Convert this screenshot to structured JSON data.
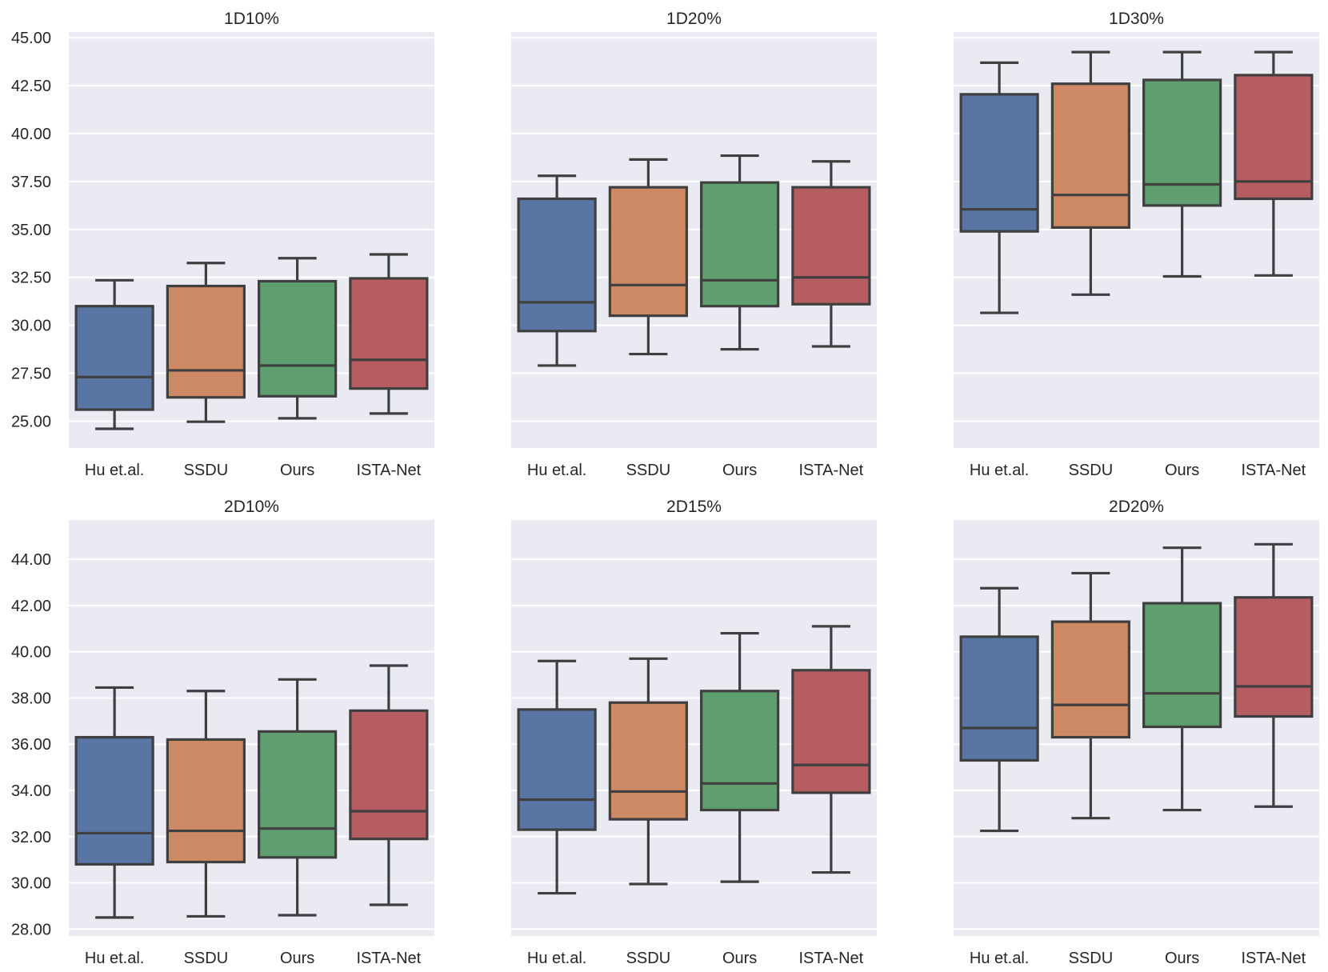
{
  "figure": {
    "background": "#ffffff",
    "axes_background": "#eaeaf2",
    "grid_color": "#ffffff",
    "line_color": "#3f3f3f"
  },
  "categories": [
    "Hu et.al.",
    "SSDU",
    "Ours",
    "ISTA-Net"
  ],
  "series_colors": [
    "#5975a4",
    "#cc8963",
    "#5f9e6e",
    "#b55d60"
  ],
  "chart_data": [
    {
      "type": "box",
      "title": "1D10%",
      "xlabel": "",
      "ylabel": "",
      "ylim": [
        23.6,
        45.3
      ],
      "yticks": [
        25,
        27.5,
        30,
        32.5,
        35,
        37.5,
        40,
        42.5,
        45
      ],
      "ytick_labels": [
        "25.00",
        "27.50",
        "30.00",
        "32.50",
        "35.00",
        "37.50",
        "40.00",
        "42.50",
        "45.00"
      ],
      "show_ytick_labels": true,
      "grid": true,
      "boxes": [
        {
          "category": "Hu et.al.",
          "min": 24.6,
          "q1": 25.6,
          "median": 27.3,
          "q3": 31.0,
          "max": 32.35
        },
        {
          "category": "SSDU",
          "min": 24.97,
          "q1": 26.24,
          "median": 27.65,
          "q3": 32.05,
          "max": 33.25
        },
        {
          "category": "Ours",
          "min": 25.15,
          "q1": 26.3,
          "median": 27.9,
          "q3": 32.3,
          "max": 33.5
        },
        {
          "category": "ISTA-Net",
          "min": 25.4,
          "q1": 26.7,
          "median": 28.2,
          "q3": 32.45,
          "max": 33.7
        }
      ]
    },
    {
      "type": "box",
      "title": "1D20%",
      "xlabel": "",
      "ylabel": "",
      "ylim": [
        23.6,
        45.3
      ],
      "yticks": [
        25,
        27.5,
        30,
        32.5,
        35,
        37.5,
        40,
        42.5,
        45
      ],
      "ytick_labels": [
        "25.00",
        "27.50",
        "30.00",
        "32.50",
        "35.00",
        "37.50",
        "40.00",
        "42.50",
        "45.00"
      ],
      "show_ytick_labels": false,
      "grid": true,
      "boxes": [
        {
          "category": "Hu et.al.",
          "min": 27.9,
          "q1": 29.7,
          "median": 31.2,
          "q3": 36.6,
          "max": 37.8
        },
        {
          "category": "SSDU",
          "min": 28.5,
          "q1": 30.5,
          "median": 32.1,
          "q3": 37.2,
          "max": 38.65
        },
        {
          "category": "Ours",
          "min": 28.75,
          "q1": 31.0,
          "median": 32.35,
          "q3": 37.45,
          "max": 38.85
        },
        {
          "category": "ISTA-Net",
          "min": 28.9,
          "q1": 31.1,
          "median": 32.5,
          "q3": 37.2,
          "max": 38.55
        }
      ]
    },
    {
      "type": "box",
      "title": "1D30%",
      "xlabel": "",
      "ylabel": "",
      "ylim": [
        23.6,
        45.3
      ],
      "yticks": [
        25,
        27.5,
        30,
        32.5,
        35,
        37.5,
        40,
        42.5,
        45
      ],
      "ytick_labels": [
        "25.00",
        "27.50",
        "30.00",
        "32.50",
        "35.00",
        "37.50",
        "40.00",
        "42.50",
        "45.00"
      ],
      "show_ytick_labels": false,
      "grid": true,
      "boxes": [
        {
          "category": "Hu et.al.",
          "min": 30.65,
          "q1": 34.9,
          "median": 36.05,
          "q3": 42.05,
          "max": 43.7
        },
        {
          "category": "SSDU",
          "min": 31.6,
          "q1": 35.1,
          "median": 36.8,
          "q3": 42.6,
          "max": 44.25
        },
        {
          "category": "Ours",
          "min": 32.55,
          "q1": 36.25,
          "median": 37.35,
          "q3": 42.8,
          "max": 44.25
        },
        {
          "category": "ISTA-Net",
          "min": 32.6,
          "q1": 36.6,
          "median": 37.5,
          "q3": 43.05,
          "max": 44.25
        }
      ]
    },
    {
      "type": "box",
      "title": "2D10%",
      "xlabel": "",
      "ylabel": "",
      "ylim": [
        27.7,
        45.7
      ],
      "yticks": [
        28,
        30,
        32,
        34,
        36,
        38,
        40,
        42,
        44
      ],
      "ytick_labels": [
        "28.00",
        "30.00",
        "32.00",
        "34.00",
        "36.00",
        "38.00",
        "40.00",
        "42.00",
        "44.00"
      ],
      "show_ytick_labels": true,
      "grid": true,
      "boxes": [
        {
          "category": "Hu et.al.",
          "min": 28.5,
          "q1": 30.8,
          "median": 32.15,
          "q3": 36.3,
          "max": 38.45
        },
        {
          "category": "SSDU",
          "min": 28.55,
          "q1": 30.9,
          "median": 32.25,
          "q3": 36.2,
          "max": 38.3
        },
        {
          "category": "Ours",
          "min": 28.6,
          "q1": 31.1,
          "median": 32.35,
          "q3": 36.55,
          "max": 38.8
        },
        {
          "category": "ISTA-Net",
          "min": 29.05,
          "q1": 31.9,
          "median": 33.1,
          "q3": 37.45,
          "max": 39.4
        }
      ]
    },
    {
      "type": "box",
      "title": "2D15%",
      "xlabel": "",
      "ylabel": "",
      "ylim": [
        27.7,
        45.7
      ],
      "yticks": [
        28,
        30,
        32,
        34,
        36,
        38,
        40,
        42,
        44
      ],
      "ytick_labels": [
        "28.00",
        "30.00",
        "32.00",
        "34.00",
        "36.00",
        "38.00",
        "40.00",
        "42.00",
        "44.00"
      ],
      "show_ytick_labels": false,
      "grid": true,
      "boxes": [
        {
          "category": "Hu et.al.",
          "min": 29.55,
          "q1": 32.3,
          "median": 33.6,
          "q3": 37.5,
          "max": 39.6
        },
        {
          "category": "SSDU",
          "min": 29.95,
          "q1": 32.75,
          "median": 33.95,
          "q3": 37.8,
          "max": 39.7
        },
        {
          "category": "Ours",
          "min": 30.05,
          "q1": 33.15,
          "median": 34.3,
          "q3": 38.3,
          "max": 40.8
        },
        {
          "category": "ISTA-Net",
          "min": 30.45,
          "q1": 33.9,
          "median": 35.1,
          "q3": 39.2,
          "max": 41.1
        }
      ]
    },
    {
      "type": "box",
      "title": "2D20%",
      "xlabel": "",
      "ylabel": "",
      "ylim": [
        27.7,
        45.7
      ],
      "yticks": [
        28,
        30,
        32,
        34,
        36,
        38,
        40,
        42,
        44
      ],
      "ytick_labels": [
        "28.00",
        "30.00",
        "32.00",
        "34.00",
        "36.00",
        "38.00",
        "40.00",
        "42.00",
        "44.00"
      ],
      "show_ytick_labels": false,
      "grid": true,
      "boxes": [
        {
          "category": "Hu et.al.",
          "min": 32.25,
          "q1": 35.3,
          "median": 36.7,
          "q3": 40.65,
          "max": 42.75
        },
        {
          "category": "SSDU",
          "min": 32.8,
          "q1": 36.3,
          "median": 37.7,
          "q3": 41.3,
          "max": 43.4
        },
        {
          "category": "Ours",
          "min": 33.15,
          "q1": 36.75,
          "median": 38.2,
          "q3": 42.1,
          "max": 44.5
        },
        {
          "category": "ISTA-Net",
          "min": 33.3,
          "q1": 37.2,
          "median": 38.5,
          "q3": 42.35,
          "max": 44.65
        }
      ]
    }
  ]
}
